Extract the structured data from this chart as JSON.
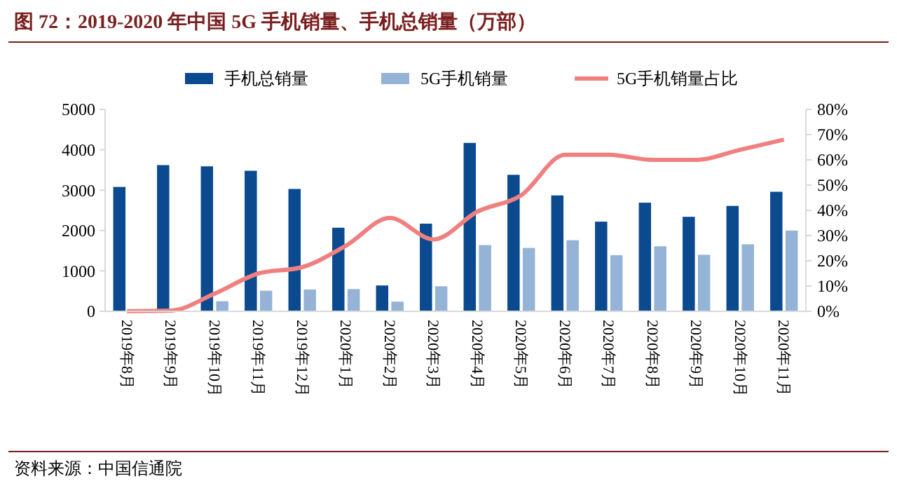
{
  "chart_data": {
    "type": "bar",
    "title": "图 72：2019-2020 年中国 5G 手机销量、手机总销量（万部）",
    "categories": [
      "2019年8月",
      "2019年9月",
      "2019年10月",
      "2019年11月",
      "2019年12月",
      "2020年1月",
      "2020年2月",
      "2020年3月",
      "2020年4月",
      "2020年5月",
      "2020年6月",
      "2020年7月",
      "2020年8月",
      "2020年9月",
      "2020年10月",
      "2020年11月"
    ],
    "series": [
      {
        "name": "手机总销量",
        "color": "#0b4a8f",
        "values": [
          3080,
          3620,
          3590,
          3480,
          3030,
          2070,
          640,
          2170,
          4170,
          3380,
          2870,
          2220,
          2690,
          2340,
          2610,
          2960
        ]
      },
      {
        "name": "5G手机销量",
        "color": "#95b3d7",
        "values": [
          0,
          10,
          250,
          510,
          540,
          550,
          240,
          620,
          1640,
          1570,
          1760,
          1390,
          1610,
          1400,
          1660,
          2000
        ]
      },
      {
        "name": "5G手机销量占比",
        "type": "line",
        "axis": "y2",
        "color": "#f08080",
        "values": [
          0.1,
          0.3,
          7,
          15,
          17.5,
          26,
          37,
          28.5,
          39.5,
          46,
          62,
          62,
          60,
          60,
          64,
          68
        ]
      }
    ],
    "ylim": [
      0,
      5000
    ],
    "yticks": [
      0,
      1000,
      2000,
      3000,
      4000,
      5000
    ],
    "y2lim": [
      0,
      80
    ],
    "y2ticks": [
      {
        "value": 0,
        "label": "0%"
      },
      {
        "value": 10,
        "label": "10%"
      },
      {
        "value": 20,
        "label": "20%"
      },
      {
        "value": 30,
        "label": "30%"
      },
      {
        "value": 40,
        "label": "40%"
      },
      {
        "value": 50,
        "label": "50%"
      },
      {
        "value": 60,
        "label": "60%"
      },
      {
        "value": 70,
        "label": "70%"
      },
      {
        "value": 80,
        "label": "80%"
      }
    ],
    "legend": "top",
    "grid": false,
    "annotations": [
      "资料来源：中国信通院"
    ]
  }
}
